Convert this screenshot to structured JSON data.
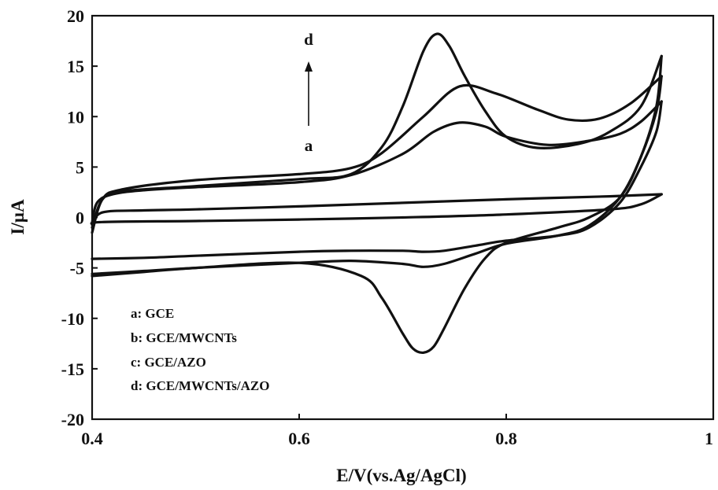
{
  "chart_data": {
    "type": "line",
    "xlabel": "E/V(vs.Ag/AgCl)",
    "ylabel": "I/µA",
    "xlim": [
      0.4,
      1.0
    ],
    "ylim": [
      -20,
      20
    ],
    "x_ticks": [
      0.4,
      0.6,
      0.8,
      1.0
    ],
    "x_tick_labels": [
      "0.4",
      "0.6",
      "0.8",
      "1"
    ],
    "y_ticks": [
      20,
      15,
      10,
      5,
      0,
      -5,
      -10,
      -15,
      -20
    ],
    "y_tick_labels": [
      "20",
      "15",
      "10",
      "5",
      "0",
      "-5",
      "-10",
      "-15",
      "-20"
    ],
    "grid": false,
    "legend_position": "bottom-left",
    "legend": [
      "a: GCE",
      "b: GCE/MWCNTs",
      "c: GCE/AZO",
      "d: GCE/MWCNTs/AZO"
    ],
    "annotations": {
      "top_label": "d",
      "bottom_label": "a",
      "arrow": "a-to-d increasing peak current"
    },
    "series": [
      {
        "label_key": "a",
        "anodic": [
          [
            0.4,
            -0.7
          ],
          [
            0.41,
            0.5
          ],
          [
            0.45,
            0.7
          ],
          [
            0.5,
            0.8
          ],
          [
            0.6,
            1.1
          ],
          [
            0.7,
            1.45
          ],
          [
            0.8,
            1.8
          ],
          [
            0.9,
            2.1
          ],
          [
            0.95,
            2.3
          ]
        ],
        "cathodic": [
          [
            0.95,
            2.3
          ],
          [
            0.93,
            1.3
          ],
          [
            0.9,
            0.8
          ],
          [
            0.8,
            0.3
          ],
          [
            0.7,
            0.0
          ],
          [
            0.6,
            -0.2
          ],
          [
            0.5,
            -0.35
          ],
          [
            0.41,
            -0.45
          ],
          [
            0.4,
            -0.7
          ]
        ]
      },
      {
        "label_key": "b",
        "anodic": [
          [
            0.4,
            -0.5
          ],
          [
            0.405,
            1.5
          ],
          [
            0.42,
            2.3
          ],
          [
            0.45,
            2.7
          ],
          [
            0.5,
            3.0
          ],
          [
            0.6,
            3.5
          ],
          [
            0.65,
            4.2
          ],
          [
            0.7,
            6.3
          ],
          [
            0.73,
            8.5
          ],
          [
            0.755,
            9.4
          ],
          [
            0.78,
            9.0
          ],
          [
            0.8,
            8.0
          ],
          [
            0.84,
            7.2
          ],
          [
            0.88,
            7.6
          ],
          [
            0.91,
            8.3
          ],
          [
            0.93,
            9.5
          ],
          [
            0.95,
            11.5
          ]
        ],
        "cathodic": [
          [
            0.95,
            11.5
          ],
          [
            0.945,
            8.5
          ],
          [
            0.93,
            5.0
          ],
          [
            0.91,
            1.5
          ],
          [
            0.88,
            -1.0
          ],
          [
            0.85,
            -1.8
          ],
          [
            0.8,
            -2.3
          ],
          [
            0.77,
            -2.8
          ],
          [
            0.74,
            -3.3
          ],
          [
            0.72,
            -3.4
          ],
          [
            0.7,
            -3.3
          ],
          [
            0.65,
            -3.3
          ],
          [
            0.6,
            -3.4
          ],
          [
            0.5,
            -3.8
          ],
          [
            0.45,
            -4.0
          ],
          [
            0.4,
            -4.1
          ]
        ]
      },
      {
        "label_key": "c",
        "anodic": [
          [
            0.4,
            -1.5
          ],
          [
            0.41,
            1.8
          ],
          [
            0.43,
            2.8
          ],
          [
            0.5,
            3.7
          ],
          [
            0.6,
            4.3
          ],
          [
            0.65,
            4.9
          ],
          [
            0.68,
            6.4
          ],
          [
            0.72,
            10.0
          ],
          [
            0.755,
            13.0
          ],
          [
            0.79,
            12.3
          ],
          [
            0.83,
            10.7
          ],
          [
            0.86,
            9.7
          ],
          [
            0.89,
            9.8
          ],
          [
            0.92,
            11.3
          ],
          [
            0.95,
            14.0
          ]
        ],
        "cathodic": [
          [
            0.95,
            14.0
          ],
          [
            0.945,
            10.5
          ],
          [
            0.93,
            6.0
          ],
          [
            0.91,
            2.0
          ],
          [
            0.88,
            -0.8
          ],
          [
            0.85,
            -1.8
          ],
          [
            0.8,
            -2.6
          ],
          [
            0.77,
            -3.6
          ],
          [
            0.74,
            -4.6
          ],
          [
            0.72,
            -4.9
          ],
          [
            0.7,
            -4.6
          ],
          [
            0.65,
            -4.3
          ],
          [
            0.6,
            -4.5
          ],
          [
            0.5,
            -5.0
          ],
          [
            0.45,
            -5.3
          ],
          [
            0.4,
            -5.6
          ]
        ]
      },
      {
        "label_key": "d",
        "anodic": [
          [
            0.4,
            -1.0
          ],
          [
            0.41,
            1.8
          ],
          [
            0.43,
            2.6
          ],
          [
            0.5,
            3.1
          ],
          [
            0.6,
            3.8
          ],
          [
            0.65,
            4.3
          ],
          [
            0.68,
            7.0
          ],
          [
            0.7,
            11.0
          ],
          [
            0.72,
            16.5
          ],
          [
            0.733,
            18.2
          ],
          [
            0.745,
            17.0
          ],
          [
            0.76,
            14.0
          ],
          [
            0.78,
            10.5
          ],
          [
            0.8,
            8.0
          ],
          [
            0.83,
            6.9
          ],
          [
            0.87,
            7.3
          ],
          [
            0.9,
            8.5
          ],
          [
            0.93,
            11.0
          ],
          [
            0.95,
            16.0
          ]
        ],
        "cathodic": [
          [
            0.95,
            16.0
          ],
          [
            0.945,
            11.0
          ],
          [
            0.93,
            6.0
          ],
          [
            0.91,
            2.0
          ],
          [
            0.88,
            0.0
          ],
          [
            0.85,
            -1.0
          ],
          [
            0.8,
            -2.5
          ],
          [
            0.78,
            -4.0
          ],
          [
            0.76,
            -7.0
          ],
          [
            0.74,
            -11.0
          ],
          [
            0.73,
            -12.8
          ],
          [
            0.72,
            -13.4
          ],
          [
            0.71,
            -13.0
          ],
          [
            0.7,
            -11.5
          ],
          [
            0.68,
            -8.0
          ],
          [
            0.66,
            -5.8
          ],
          [
            0.6,
            -4.5
          ],
          [
            0.5,
            -5.0
          ],
          [
            0.45,
            -5.4
          ],
          [
            0.4,
            -5.8
          ]
        ]
      }
    ]
  }
}
